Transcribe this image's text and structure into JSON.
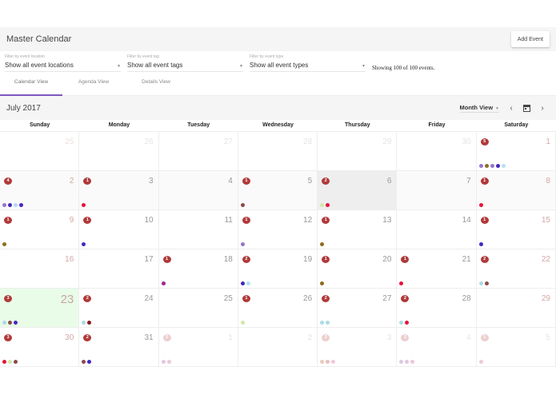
{
  "header": {
    "title": "Master Calendar",
    "add_event_label": "Add Event"
  },
  "filters": [
    {
      "label": "Filter by event location",
      "value": "Show all event locations"
    },
    {
      "label": "Filter by event tag",
      "value": "Show all event tags"
    },
    {
      "label": "Filter by event type",
      "value": "Show all event types"
    }
  ],
  "status": {
    "showing_text": "Showing 100 of 100 events."
  },
  "tabs": [
    {
      "label": "Calendar View",
      "active": true
    },
    {
      "label": "Agenda View",
      "active": false
    },
    {
      "label": "Details View",
      "active": false
    }
  ],
  "calendar": {
    "month_title": "July 2017",
    "view_select": "Month View",
    "icons": {
      "prev": "chevron-left-icon",
      "today": "calendar-today-icon",
      "next": "chevron-right-icon"
    },
    "weekdays": [
      "Sunday",
      "Monday",
      "Tuesday",
      "Wednesday",
      "Thursday",
      "Friday",
      "Saturday"
    ],
    "colors": {
      "badge": "#b03a3a",
      "badge_faded": "#eccfcf",
      "today_bg": "#e8fce8",
      "selected_bg": "#eeeeee",
      "tab_indicator": "#7e57c2"
    },
    "weeks": [
      [
        {
          "day": "25",
          "other": true,
          "count": null,
          "dots": []
        },
        {
          "day": "26",
          "other": true,
          "count": null,
          "dots": []
        },
        {
          "day": "27",
          "other": true,
          "count": null,
          "dots": []
        },
        {
          "day": "28",
          "other": true,
          "count": null,
          "dots": []
        },
        {
          "day": "29",
          "other": true,
          "count": null,
          "dots": []
        },
        {
          "day": "30",
          "other": true,
          "count": null,
          "dots": []
        },
        {
          "day": "1",
          "other": false,
          "count": "5",
          "dots": [
            "#9575cd",
            "#8d6e1e",
            "#9575cd",
            "#4527c0",
            "#b3e0f2"
          ]
        }
      ],
      [
        {
          "day": "2",
          "other": false,
          "count": "4",
          "dots": [
            "#9575cd",
            "#4527c0",
            "#b3d8f2",
            "#4527c0"
          ]
        },
        {
          "day": "3",
          "other": false,
          "count": "1",
          "dots": [
            "#e8143c"
          ]
        },
        {
          "day": "4",
          "other": false,
          "count": null,
          "dots": []
        },
        {
          "day": "5",
          "other": false,
          "count": "1",
          "dots": [
            "#8b4a4a"
          ]
        },
        {
          "day": "6",
          "other": false,
          "count": "2",
          "dots": [
            "#d4e8a8",
            "#e8143c"
          ],
          "selected": true
        },
        {
          "day": "7",
          "other": false,
          "count": null,
          "dots": []
        },
        {
          "day": "8",
          "other": false,
          "count": "1",
          "dots": [
            "#e8143c"
          ]
        }
      ],
      [
        {
          "day": "9",
          "other": false,
          "count": "1",
          "dots": [
            "#8d6e1e"
          ]
        },
        {
          "day": "10",
          "other": false,
          "count": "1",
          "dots": [
            "#4527c0"
          ]
        },
        {
          "day": "11",
          "other": false,
          "count": null,
          "dots": []
        },
        {
          "day": "12",
          "other": false,
          "count": "1",
          "dots": [
            "#9575cd"
          ]
        },
        {
          "day": "13",
          "other": false,
          "count": "1",
          "dots": [
            "#8d6e1e"
          ]
        },
        {
          "day": "14",
          "other": false,
          "count": null,
          "dots": []
        },
        {
          "day": "15",
          "other": false,
          "count": "1",
          "dots": [
            "#4527c0"
          ]
        }
      ],
      [
        {
          "day": "16",
          "other": false,
          "count": null,
          "dots": []
        },
        {
          "day": "17",
          "other": false,
          "count": null,
          "dots": []
        },
        {
          "day": "18",
          "other": false,
          "count": "1",
          "dots": [
            "#9c2790"
          ]
        },
        {
          "day": "19",
          "other": false,
          "count": "2",
          "dots": [
            "#4527c0",
            "#b3e0f2"
          ]
        },
        {
          "day": "20",
          "other": false,
          "count": "1",
          "dots": [
            "#8d6e1e"
          ]
        },
        {
          "day": "21",
          "other": false,
          "count": "1",
          "dots": [
            "#e8143c"
          ]
        },
        {
          "day": "22",
          "other": false,
          "count": "2",
          "dots": [
            "#add8e6",
            "#8b4a4a"
          ]
        }
      ],
      [
        {
          "day": "23",
          "other": false,
          "count": "3",
          "dots": [
            "#add8e6",
            "#8b4a4a",
            "#4527c0"
          ],
          "today": true
        },
        {
          "day": "24",
          "other": false,
          "count": "2",
          "dots": [
            "#add8e6",
            "#8b1a1a"
          ]
        },
        {
          "day": "25",
          "other": false,
          "count": null,
          "dots": []
        },
        {
          "day": "26",
          "other": false,
          "count": "1",
          "dots": [
            "#d4e8a8"
          ]
        },
        {
          "day": "27",
          "other": false,
          "count": "2",
          "dots": [
            "#a8dce6",
            "#a8dce6"
          ]
        },
        {
          "day": "28",
          "other": false,
          "count": "2",
          "dots": [
            "#a8dce6",
            "#e8143c"
          ]
        },
        {
          "day": "29",
          "other": false,
          "count": null,
          "dots": []
        }
      ],
      [
        {
          "day": "30",
          "other": false,
          "count": "3",
          "dots": [
            "#e8143c",
            "#d4e8a8",
            "#8b4a4a"
          ]
        },
        {
          "day": "31",
          "other": false,
          "count": "2",
          "dots": [
            "#8b4a4a",
            "#4527c0"
          ]
        },
        {
          "day": "1",
          "other": true,
          "count": "2",
          "dots": [
            "#e0c8e0",
            "#ecc8d8"
          ]
        },
        {
          "day": "2",
          "other": true,
          "count": null,
          "dots": []
        },
        {
          "day": "3",
          "other": true,
          "count": "3",
          "dots": [
            "#e6cdb8",
            "#e6c0c0",
            "#f0c8d8"
          ]
        },
        {
          "day": "4",
          "other": true,
          "count": "3",
          "dots": [
            "#dcc8e6",
            "#e0c8e0",
            "#ecc8d8"
          ]
        },
        {
          "day": "5",
          "other": true,
          "count": "1",
          "dots": [
            "#f0c8d8"
          ]
        }
      ]
    ]
  }
}
